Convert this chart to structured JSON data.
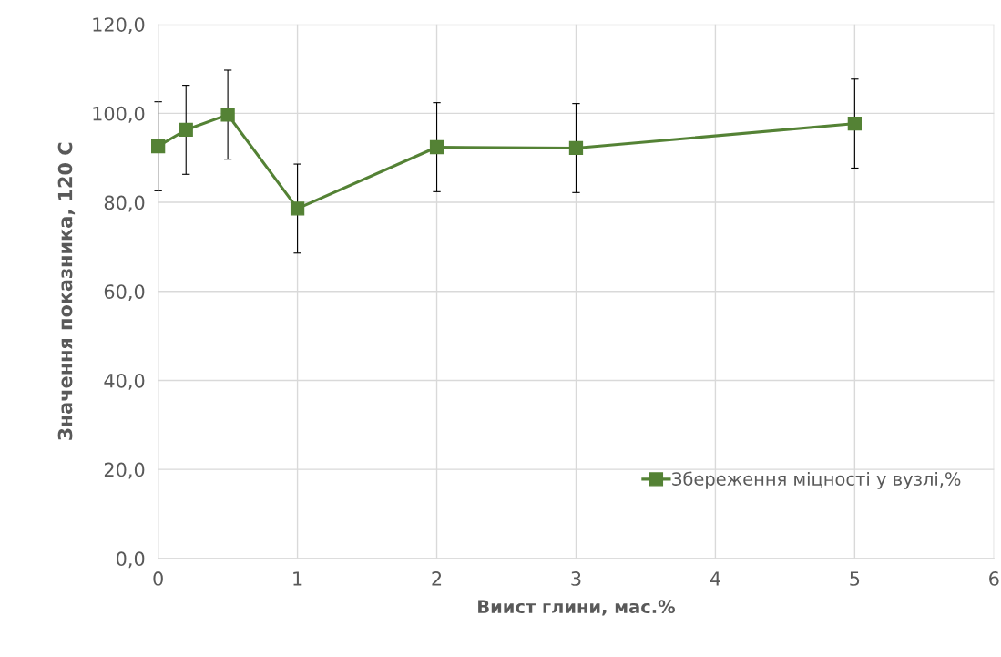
{
  "chart_data": {
    "type": "line",
    "xlabel": "Виист глини, мас.%",
    "ylabel": "Значення показника, 120 С",
    "x": [
      0,
      0.2,
      0.5,
      1,
      2,
      3,
      5
    ],
    "series": [
      {
        "name": "Збереження міцності у вузлі,%",
        "color": "#548235",
        "values": [
          92.6,
          96.3,
          99.7,
          78.6,
          92.4,
          92.2,
          97.7
        ],
        "errors": [
          10,
          10,
          10,
          10,
          10,
          10,
          10
        ]
      }
    ],
    "xlim": [
      0,
      6
    ],
    "xticks": [
      0,
      1,
      2,
      3,
      4,
      5,
      6
    ],
    "ylim": [
      0,
      120
    ],
    "yticks": [
      {
        "value": 0,
        "label": "0,0"
      },
      {
        "value": 20,
        "label": "20,0"
      },
      {
        "value": 40,
        "label": "40,0"
      },
      {
        "value": 60,
        "label": "60,0"
      },
      {
        "value": 80,
        "label": "80,0"
      },
      {
        "value": 100,
        "label": "100,0"
      },
      {
        "value": 120,
        "label": "120,0"
      }
    ],
    "grid": true,
    "legend": "bottom right",
    "marker": "square",
    "line_style": "solid"
  }
}
